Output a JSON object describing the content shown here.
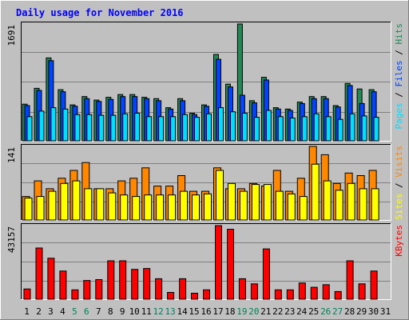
{
  "chart_data": {
    "type": "bar",
    "title": "Daily usage for November 2016",
    "categories": [
      "1",
      "2",
      "3",
      "4",
      "5",
      "6",
      "7",
      "8",
      "9",
      "10",
      "11",
      "12",
      "13",
      "14",
      "15",
      "16",
      "17",
      "18",
      "19",
      "20",
      "21",
      "22",
      "23",
      "24",
      "25",
      "26",
      "27",
      "28",
      "29",
      "30",
      "31"
    ],
    "weekend_days": [
      "5",
      "6",
      "12",
      "13",
      "19",
      "20",
      "26",
      "27"
    ],
    "panels": [
      {
        "name": "hits-files-pages",
        "max_label": "1691",
        "ylim": [
          0,
          1691
        ],
        "legend": [
          "Pages",
          "/",
          "Files",
          "/",
          "Hits"
        ],
        "series": [
          {
            "name": "Hits",
            "color": "#228855",
            "values": [
              530,
              760,
              1200,
              740,
              520,
              640,
              590,
              630,
              670,
              670,
              630,
              610,
              480,
              610,
              400,
              520,
              1250,
              820,
              1691,
              580,
              920,
              480,
              460,
              560,
              640,
              640,
              510,
              830,
              750,
              740,
              0
            ]
          },
          {
            "name": "Files",
            "color": "#0044ff",
            "values": [
              510,
              730,
              1160,
              710,
              500,
              610,
              570,
              600,
              640,
              640,
              610,
              580,
              460,
              580,
              380,
              500,
              1180,
              780,
              660,
              550,
              880,
              460,
              440,
              540,
              610,
              610,
              490,
              800,
              540,
              710,
              0
            ]
          },
          {
            "name": "Pages",
            "color": "#00ddff",
            "values": [
              350,
              430,
              480,
              460,
              380,
              380,
              370,
              370,
              390,
              400,
              350,
              350,
              350,
              380,
              340,
              390,
              480,
              420,
              400,
              340,
              440,
              350,
              330,
              350,
              390,
              350,
              310,
              390,
              360,
              340,
              0
            ]
          }
        ]
      },
      {
        "name": "visits-sites",
        "max_label": "141",
        "ylim": [
          0,
          141
        ],
        "legend": [
          "Sites",
          "/",
          "Visits"
        ],
        "series": [
          {
            "name": "Visits",
            "color": "#ff8800",
            "values": [
              45,
              75,
              60,
              80,
              95,
              110,
              60,
              60,
              75,
              80,
              100,
              65,
              65,
              85,
              55,
              55,
              100,
              60,
              60,
              70,
              65,
              95,
              55,
              80,
              141,
              125,
              70,
              90,
              85,
              95,
              0
            ]
          },
          {
            "name": "Sites",
            "color": "#ffff00",
            "values": [
              42,
              45,
              55,
              70,
              75,
              60,
              60,
              52,
              48,
              45,
              48,
              48,
              48,
              55,
              48,
              50,
              95,
              70,
              55,
              68,
              68,
              55,
              50,
              45,
              107,
              75,
              57,
              70,
              60,
              60,
              0
            ]
          }
        ]
      },
      {
        "name": "kbytes",
        "max_label": "43157",
        "ylim": [
          0,
          43157
        ],
        "legend": [
          "KBytes"
        ],
        "series": [
          {
            "name": "KBytes",
            "color": "#ff0000",
            "values": [
              6000,
              30000,
              24000,
              16500,
              5500,
              11000,
              11500,
              22500,
              22500,
              17500,
              18000,
              12000,
              4000,
              12000,
              3500,
              5500,
              43157,
              41000,
              12000,
              9000,
              29500,
              5500,
              5500,
              9500,
              7000,
              8500,
              4500,
              22500,
              9000,
              16500,
              0
            ]
          }
        ]
      }
    ],
    "grid": true
  }
}
